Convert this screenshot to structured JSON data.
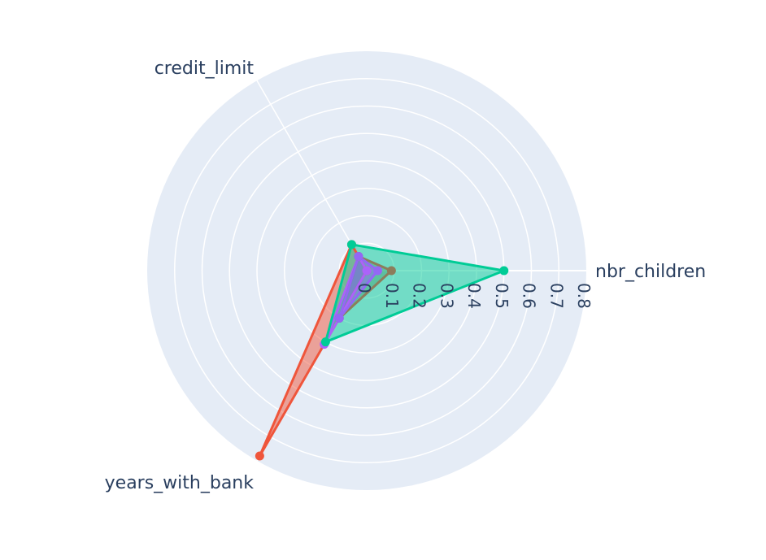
{
  "chart_data": {
    "type": "radar",
    "axes": [
      "nbr_children",
      "credit_limit",
      "years_with_bank"
    ],
    "radial_range": [
      0,
      0.8
    ],
    "radial_ticks": [
      "0",
      "0.1",
      "0.2",
      "0.3",
      "0.4",
      "0.5",
      "0.6",
      "0.7",
      "0.8"
    ],
    "grid": true,
    "legend": "none",
    "series": [
      {
        "color": "#EF553B",
        "values": [
          0.0,
          0.11,
          0.78
        ]
      },
      {
        "color": "#AB63FA",
        "values": [
          0.0,
          0.06,
          0.31
        ]
      },
      {
        "color": "#8c7d5c",
        "values": [
          0.09,
          0.06,
          0.2
        ]
      },
      {
        "color": "#00CC96",
        "values": [
          0.5,
          0.11,
          0.3
        ]
      },
      {
        "color": "#9467f5",
        "values": [
          0.04,
          0.06,
          0.2
        ]
      }
    ]
  }
}
